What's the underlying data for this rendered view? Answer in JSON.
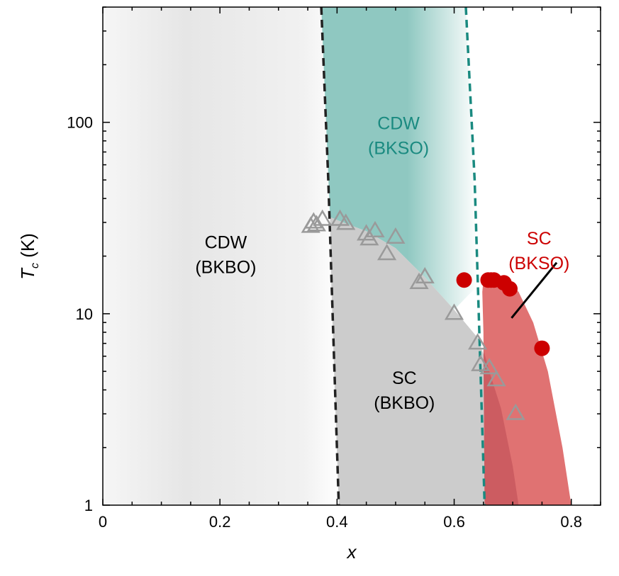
{
  "chart_data": {
    "type": "scatter",
    "title": "",
    "xlabel": "x",
    "ylabel": {
      "main": "T",
      "sub": "c",
      "unit": " (K)"
    },
    "xlim": [
      0,
      0.85
    ],
    "ylim": [
      1,
      400
    ],
    "yscale": "log",
    "x_ticks": [
      {
        "value": 0,
        "label": "0"
      },
      {
        "value": 0.2,
        "label": "0.2"
      },
      {
        "value": 0.4,
        "label": "0.4"
      },
      {
        "value": 0.6,
        "label": "0.6"
      },
      {
        "value": 0.8,
        "label": "0.8"
      }
    ],
    "y_ticks": [
      {
        "value": 1,
        "label": "1"
      },
      {
        "value": 10,
        "label": "10"
      },
      {
        "value": 100,
        "label": "100"
      }
    ],
    "regions": [
      {
        "name": "cdw-bkbo",
        "line1": "CDW",
        "line2": "(BKBO)",
        "x": 0.21,
        "y": 22,
        "color": "#000000"
      },
      {
        "name": "cdw-bkso",
        "line1": "CDW",
        "line2": "(BKSO)",
        "x": 0.505,
        "y": 92,
        "color": "#1a8a80"
      },
      {
        "name": "sc-bkbo",
        "line1": "SC",
        "line2": "(BKBO)",
        "x": 0.515,
        "y": 4.3,
        "color": "#000000"
      },
      {
        "name": "sc-bkso",
        "line1": "SC",
        "line2": "(BKSO)",
        "x": 0.745,
        "y": 23,
        "color": "#cc0000"
      }
    ],
    "boundaries": [
      {
        "name": "bkbo-cdw-boundary",
        "color": "#222222",
        "points": [
          [
            0.373,
            400
          ],
          [
            0.385,
            50
          ],
          [
            0.403,
            1
          ]
        ]
      },
      {
        "name": "bkso-cdw-boundary",
        "color": "#1a8a80",
        "points": [
          [
            0.62,
            400
          ],
          [
            0.635,
            50
          ],
          [
            0.652,
            1
          ]
        ]
      }
    ],
    "series": [
      {
        "name": "BKBO",
        "marker": "triangle-open",
        "color": "#9a9a9a",
        "points": [
          [
            0.355,
            28.5
          ],
          [
            0.36,
            30
          ],
          [
            0.365,
            29
          ],
          [
            0.375,
            31
          ],
          [
            0.405,
            31
          ],
          [
            0.415,
            29.5
          ],
          [
            0.45,
            26
          ],
          [
            0.455,
            24.5
          ],
          [
            0.465,
            27
          ],
          [
            0.485,
            20.5
          ],
          [
            0.5,
            25
          ],
          [
            0.54,
            14.5
          ],
          [
            0.55,
            15.5
          ],
          [
            0.6,
            10
          ],
          [
            0.64,
            7
          ],
          [
            0.645,
            5.4
          ],
          [
            0.66,
            5.2
          ],
          [
            0.672,
            4.5
          ],
          [
            0.705,
            3
          ]
        ]
      },
      {
        "name": "BKSO",
        "marker": "circle-filled",
        "color": "#cc0000",
        "points": [
          [
            0.617,
            15
          ],
          [
            0.658,
            15
          ],
          [
            0.663,
            15
          ],
          [
            0.668,
            15
          ],
          [
            0.685,
            14.5
          ],
          [
            0.695,
            13.5
          ],
          [
            0.75,
            6.6
          ]
        ]
      }
    ],
    "annotations": [
      {
        "name": "sc-bkso-pointer",
        "from": [
          0.775,
          18.5
        ],
        "to": [
          0.698,
          9.5
        ],
        "color": "#000000"
      }
    ],
    "grid": false,
    "legend": "none"
  }
}
